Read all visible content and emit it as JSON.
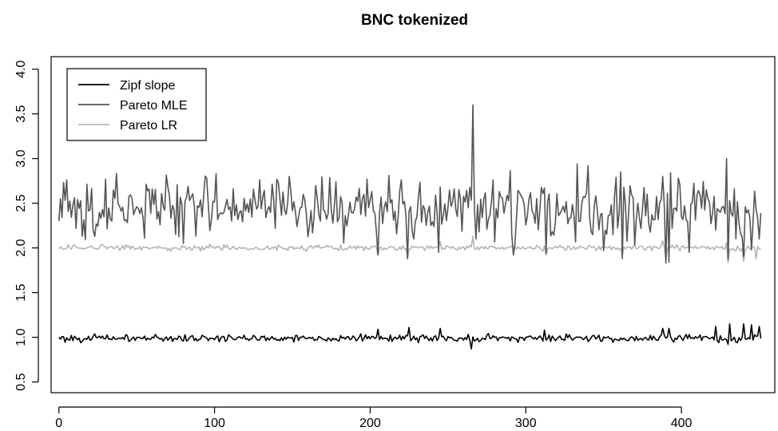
{
  "chart_data": {
    "type": "line",
    "title": "BNC tokenized",
    "xlabel": "",
    "ylabel": "",
    "xlim": [
      -5,
      460
    ],
    "ylim": [
      0.38,
      4.14
    ],
    "x_ticks": [
      0,
      100,
      200,
      300,
      400
    ],
    "y_ticks": [
      0.5,
      1.0,
      1.5,
      2.0,
      2.5,
      3.0,
      3.5,
      4.0
    ],
    "x_tick_labels": [
      "0",
      "100",
      "200",
      "300",
      "400"
    ],
    "y_tick_labels": [
      "0.5",
      "1.0",
      "1.5",
      "2.0",
      "2.5",
      "3.0",
      "3.5",
      "4.0"
    ],
    "grid": false,
    "legend": {
      "placement": "top-left",
      "entries": [
        "Zipf slope",
        "Pareto MLE",
        "Pareto LR"
      ]
    },
    "n_points": 452,
    "series": [
      {
        "name": "Zipf slope",
        "color": "#000000",
        "level": 0.99,
        "noise": 0.02,
        "x": [
          0,
          205,
          225,
          245,
          265,
          312,
          388,
          392,
          405,
          422,
          430,
          431,
          440,
          445,
          450,
          452
        ],
        "y": [
          1.0,
          1.09,
          1.11,
          1.1,
          0.87,
          1.08,
          1.1,
          1.1,
          1.03,
          1.12,
          0.92,
          1.15,
          1.15,
          1.14,
          1.12,
          1.01
        ]
      },
      {
        "name": "Pareto MLE",
        "color": "#555555",
        "level": 2.45,
        "noise": 0.16,
        "x": [
          0,
          1,
          30,
          75,
          95,
          140,
          148,
          198,
          205,
          224,
          244,
          266,
          268,
          292,
          313,
          333,
          340,
          350,
          361,
          362,
          370,
          388,
          390,
          392,
          398,
          405,
          422,
          429,
          430,
          440,
          445,
          450,
          452
        ],
        "y": [
          2.3,
          2.55,
          2.77,
          2.15,
          2.78,
          2.77,
          2.8,
          2.77,
          1.92,
          1.88,
          1.95,
          3.6,
          2.1,
          1.92,
          1.94,
          2.94,
          2.92,
          1.97,
          2.85,
          1.88,
          2.03,
          2.8,
          1.83,
          1.84,
          2.78,
          1.95,
          2.2,
          3.0,
          1.87,
          1.9,
          1.98,
          2.1,
          2.2
        ]
      },
      {
        "name": "Pareto LR",
        "color": "#b4b4b4",
        "level": 2.0,
        "noise": 0.015,
        "x": [
          0,
          205,
          224,
          245,
          266,
          313,
          362,
          388,
          390,
          429,
          430,
          440,
          448,
          452
        ],
        "y": [
          1.99,
          1.92,
          1.88,
          2.07,
          2.13,
          1.92,
          1.91,
          2.08,
          1.86,
          2.06,
          1.84,
          1.85,
          1.88,
          1.98
        ]
      }
    ]
  }
}
